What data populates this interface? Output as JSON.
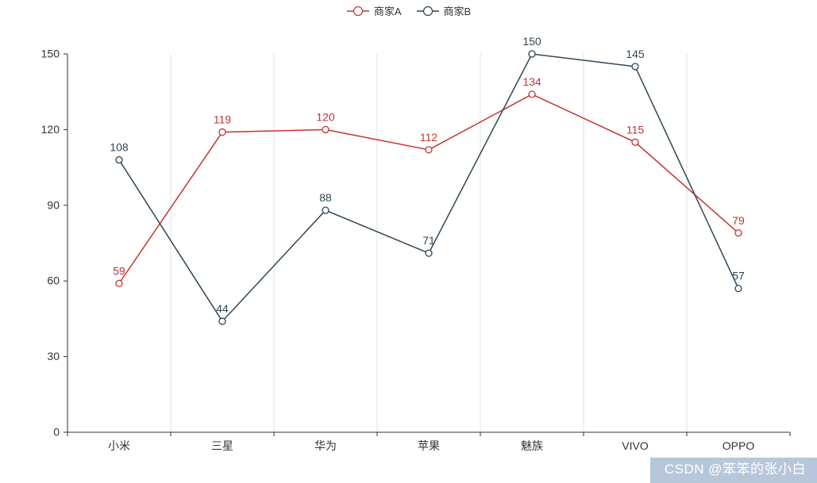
{
  "watermark": {
    "text": "CSDN @笨笨的张小白",
    "background": "#b2c1d7",
    "text_color": "#ffffff"
  },
  "chart_data": {
    "type": "line",
    "categories": [
      "小米",
      "三星",
      "华为",
      "苹果",
      "魅族",
      "VIVO",
      "OPPO"
    ],
    "series": [
      {
        "name": "商家A",
        "color": "#c23531",
        "values": [
          59,
          119,
          120,
          112,
          134,
          115,
          79
        ]
      },
      {
        "name": "商家B",
        "color": "#2f4554",
        "values": [
          108,
          44,
          88,
          71,
          150,
          145,
          57
        ]
      }
    ],
    "title": "",
    "xlabel": "",
    "ylabel": "",
    "ylim": [
      0,
      150
    ],
    "y_ticks": [
      0,
      30,
      60,
      90,
      120,
      150
    ],
    "grid": "vertical-splitlines-only",
    "legend_position": "top-center",
    "marker": "empty-circle",
    "colors": {
      "axis": "#333333",
      "splitline": "#e0e0e0",
      "tick_label": "#333333",
      "background": "#ffffff"
    }
  }
}
